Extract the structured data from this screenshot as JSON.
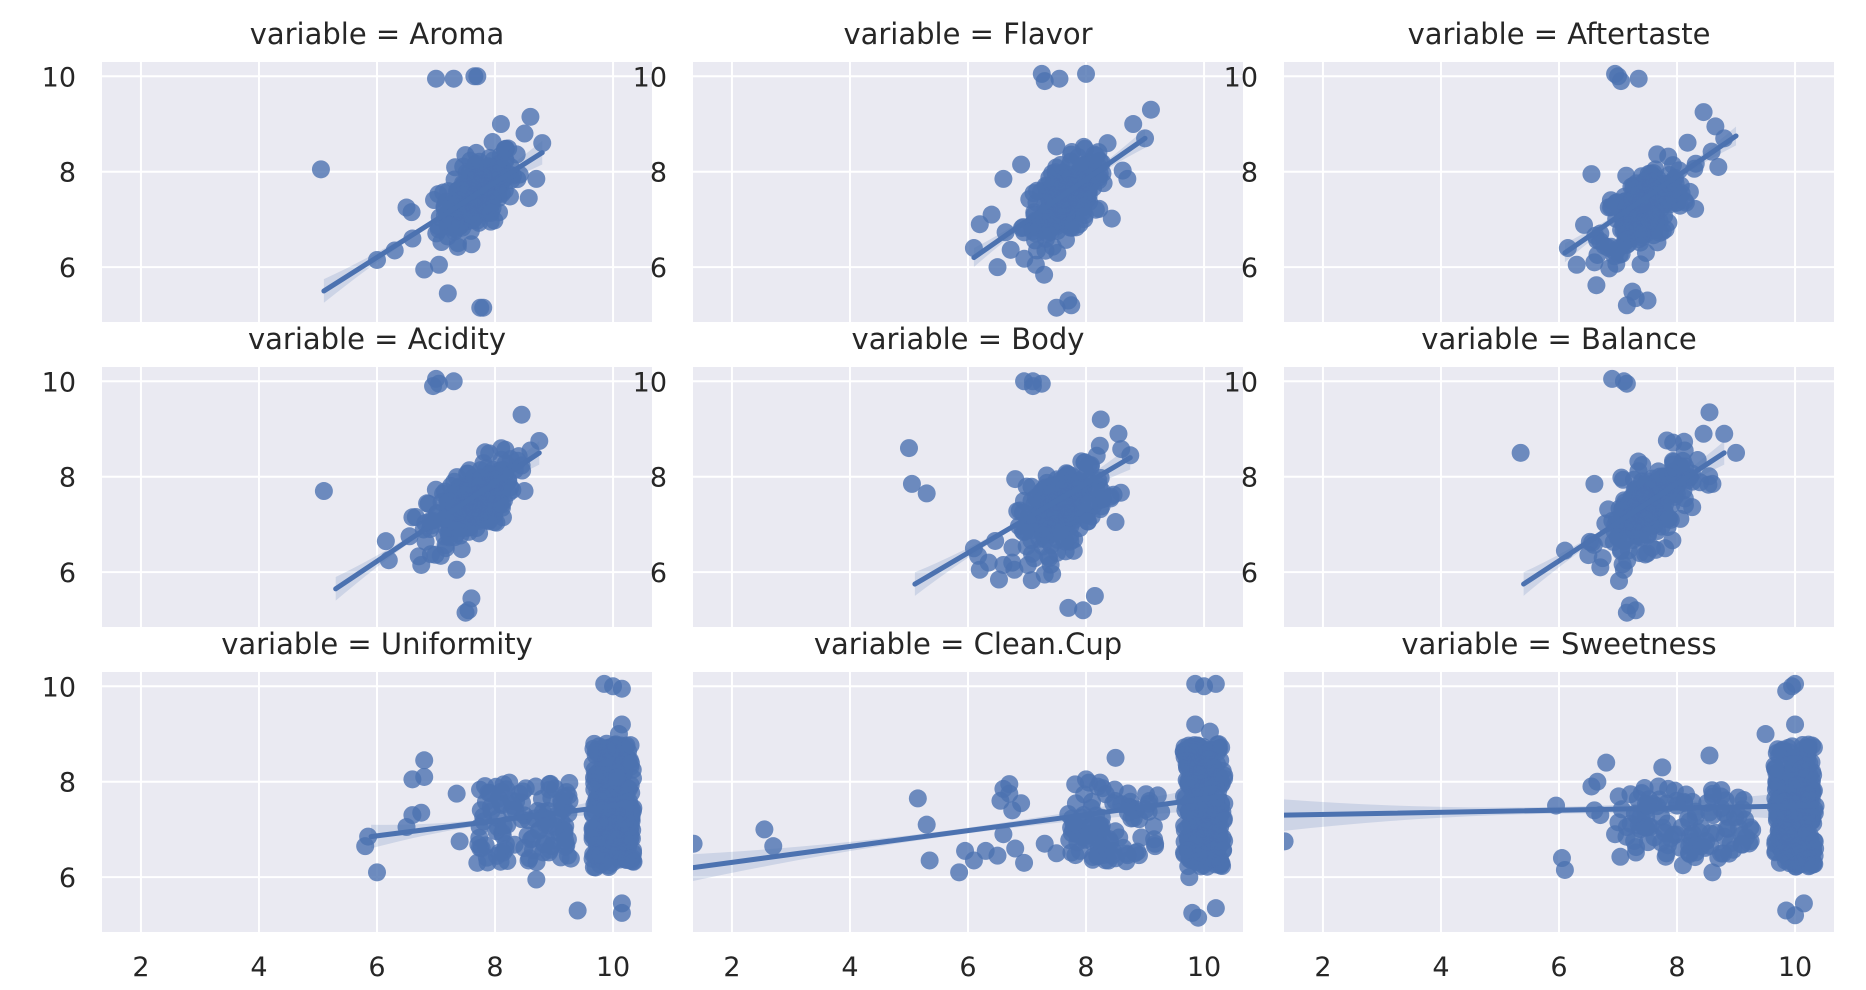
{
  "figure": {
    "style": {
      "panel_bg": "#eaeaf2",
      "grid_color": "#ffffff",
      "series_color": "#4c72b0",
      "ci_color": "#4c72b0"
    }
  },
  "chart_data": [
    {
      "type": "scatter",
      "title": "variable = Aroma",
      "xlim": [
        1.34,
        10.66
      ],
      "ylim": [
        4.85,
        10.3
      ],
      "xticks": [],
      "yticks": [
        6,
        8,
        10
      ],
      "grid": true,
      "center": [
        7.7,
        7.55
      ],
      "spread": [
        0.32,
        0.38
      ],
      "n_dense": 220,
      "line_x": [
        5.1,
        8.8
      ],
      "line_y": [
        5.5,
        8.4
      ],
      "ci": 0.15,
      "points": [
        [
          5.05,
          8.05
        ],
        [
          7.0,
          9.95
        ],
        [
          7.3,
          9.95
        ],
        [
          7.7,
          10.0
        ],
        [
          7.65,
          10.0
        ],
        [
          7.2,
          5.45
        ],
        [
          7.75,
          5.15
        ],
        [
          7.8,
          5.15
        ],
        [
          6.8,
          5.95
        ],
        [
          7.05,
          6.05
        ],
        [
          8.1,
          9.0
        ],
        [
          8.6,
          9.15
        ],
        [
          8.8,
          8.6
        ],
        [
          8.7,
          7.85
        ],
        [
          6.0,
          6.15
        ],
        [
          6.3,
          6.35
        ],
        [
          6.6,
          6.6
        ],
        [
          6.5,
          7.25
        ],
        [
          8.5,
          8.8
        ]
      ]
    },
    {
      "type": "scatter",
      "title": "variable = Flavor",
      "xlim": [
        1.34,
        10.66
      ],
      "ylim": [
        4.85,
        10.3
      ],
      "xticks": [],
      "yticks": [
        6,
        8,
        10
      ],
      "grid": true,
      "center": [
        7.65,
        7.4
      ],
      "spread": [
        0.35,
        0.38
      ],
      "n_dense": 220,
      "line_x": [
        6.1,
        9.0
      ],
      "line_y": [
        6.2,
        8.7
      ],
      "ci": 0.12,
      "points": [
        [
          7.25,
          10.05
        ],
        [
          7.55,
          9.95
        ],
        [
          8.0,
          10.05
        ],
        [
          7.3,
          9.9
        ],
        [
          7.7,
          5.3
        ],
        [
          7.75,
          5.2
        ],
        [
          7.5,
          5.15
        ],
        [
          7.15,
          6.05
        ],
        [
          6.5,
          6.0
        ],
        [
          6.1,
          6.4
        ],
        [
          6.2,
          6.9
        ],
        [
          6.4,
          7.1
        ],
        [
          9.1,
          9.3
        ],
        [
          8.8,
          9.0
        ],
        [
          9.0,
          8.7
        ],
        [
          8.7,
          7.85
        ],
        [
          6.9,
          8.15
        ],
        [
          6.6,
          7.85
        ]
      ]
    },
    {
      "type": "scatter",
      "title": "variable = Aftertaste",
      "xlim": [
        1.34,
        10.66
      ],
      "ylim": [
        4.85,
        10.3
      ],
      "xticks": [],
      "yticks": [
        6,
        8,
        10
      ],
      "grid": true,
      "center": [
        7.45,
        7.25
      ],
      "spread": [
        0.36,
        0.4
      ],
      "n_dense": 220,
      "line_x": [
        6.1,
        9.0
      ],
      "line_y": [
        6.3,
        8.75
      ],
      "ci": 0.12,
      "points": [
        [
          6.95,
          10.05
        ],
        [
          7.0,
          10.0
        ],
        [
          7.35,
          9.95
        ],
        [
          7.05,
          9.9
        ],
        [
          7.3,
          5.35
        ],
        [
          7.5,
          5.3
        ],
        [
          7.15,
          5.2
        ],
        [
          6.3,
          6.05
        ],
        [
          6.6,
          6.1
        ],
        [
          6.15,
          6.4
        ],
        [
          8.45,
          9.25
        ],
        [
          8.65,
          8.95
        ],
        [
          8.8,
          8.7
        ],
        [
          8.7,
          8.1
        ],
        [
          8.15,
          7.35
        ],
        [
          6.55,
          7.95
        ]
      ]
    },
    {
      "type": "scatter",
      "title": "variable = Acidity",
      "xlim": [
        1.34,
        10.66
      ],
      "ylim": [
        4.85,
        10.3
      ],
      "xticks": [],
      "yticks": [
        6,
        8,
        10
      ],
      "grid": true,
      "center": [
        7.6,
        7.45
      ],
      "spread": [
        0.36,
        0.38
      ],
      "n_dense": 220,
      "line_x": [
        5.3,
        8.75
      ],
      "line_y": [
        5.65,
        8.5
      ],
      "ci": 0.15,
      "points": [
        [
          5.1,
          7.7
        ],
        [
          7.0,
          10.05
        ],
        [
          7.05,
          9.95
        ],
        [
          7.3,
          10.0
        ],
        [
          6.95,
          9.9
        ],
        [
          7.6,
          5.45
        ],
        [
          7.55,
          5.2
        ],
        [
          7.5,
          5.15
        ],
        [
          6.75,
          6.15
        ],
        [
          7.35,
          6.05
        ],
        [
          6.2,
          6.25
        ],
        [
          6.15,
          6.65
        ],
        [
          8.45,
          9.3
        ],
        [
          8.75,
          8.75
        ],
        [
          8.6,
          8.55
        ],
        [
          8.5,
          7.7
        ],
        [
          6.6,
          7.15
        ]
      ]
    },
    {
      "type": "scatter",
      "title": "variable = Body",
      "xlim": [
        1.34,
        10.66
      ],
      "ylim": [
        4.85,
        10.3
      ],
      "xticks": [],
      "yticks": [
        6,
        8,
        10
      ],
      "grid": true,
      "center": [
        7.6,
        7.35
      ],
      "spread": [
        0.38,
        0.4
      ],
      "n_dense": 220,
      "line_x": [
        5.1,
        8.75
      ],
      "line_y": [
        5.75,
        8.4
      ],
      "ci": 0.15,
      "points": [
        [
          5.0,
          8.6
        ],
        [
          5.05,
          7.85
        ],
        [
          5.3,
          7.65
        ],
        [
          6.95,
          10.0
        ],
        [
          7.1,
          10.0
        ],
        [
          7.25,
          9.95
        ],
        [
          7.1,
          9.9
        ],
        [
          8.15,
          5.5
        ],
        [
          7.7,
          5.25
        ],
        [
          7.95,
          5.2
        ],
        [
          7.3,
          5.95
        ],
        [
          6.6,
          6.15
        ],
        [
          6.2,
          6.05
        ],
        [
          6.1,
          6.5
        ],
        [
          6.35,
          6.2
        ],
        [
          8.25,
          9.2
        ],
        [
          8.55,
          8.9
        ],
        [
          8.75,
          8.45
        ],
        [
          8.5,
          7.05
        ],
        [
          6.8,
          7.95
        ]
      ]
    },
    {
      "type": "scatter",
      "title": "variable = Balance",
      "xlim": [
        1.34,
        10.66
      ],
      "ylim": [
        4.85,
        10.3
      ],
      "xticks": [],
      "yticks": [
        6,
        8,
        10
      ],
      "grid": true,
      "center": [
        7.5,
        7.35
      ],
      "spread": [
        0.38,
        0.4
      ],
      "n_dense": 220,
      "line_x": [
        5.4,
        8.8
      ],
      "line_y": [
        5.75,
        8.5
      ],
      "ci": 0.15,
      "points": [
        [
          5.35,
          8.5
        ],
        [
          6.9,
          10.05
        ],
        [
          7.1,
          10.0
        ],
        [
          7.15,
          9.95
        ],
        [
          7.2,
          5.3
        ],
        [
          7.3,
          5.2
        ],
        [
          7.15,
          5.15
        ],
        [
          6.7,
          6.1
        ],
        [
          7.1,
          6.05
        ],
        [
          7.8,
          6.5
        ],
        [
          6.1,
          6.45
        ],
        [
          8.55,
          9.35
        ],
        [
          8.45,
          8.9
        ],
        [
          8.8,
          8.9
        ],
        [
          9.0,
          8.5
        ],
        [
          8.6,
          7.85
        ],
        [
          8.35,
          8.35
        ],
        [
          6.6,
          7.85
        ],
        [
          7.5,
          6.8
        ]
      ]
    },
    {
      "type": "scatter",
      "title": "variable = Uniformity",
      "xlim": [
        1.34,
        10.66
      ],
      "ylim": [
        4.85,
        10.3
      ],
      "xticks": [
        2,
        4,
        6,
        8,
        10
      ],
      "yticks": [
        6,
        8,
        10
      ],
      "grid": true,
      "band": [
        9.65,
        10.35
      ],
      "band_y": [
        6.2,
        8.8
      ],
      "n_band": 240,
      "mid_band": [
        7.7,
        9.3
      ],
      "n_mid": 110,
      "mid_y": [
        6.3,
        8.0
      ],
      "line_x": [
        5.9,
        10.35
      ],
      "line_y": [
        6.85,
        7.55
      ],
      "ci": 0.15,
      "points": [
        [
          5.8,
          6.65
        ],
        [
          5.85,
          6.85
        ],
        [
          6.0,
          6.1
        ],
        [
          6.5,
          7.05
        ],
        [
          6.6,
          7.3
        ],
        [
          6.6,
          8.05
        ],
        [
          6.8,
          8.1
        ],
        [
          6.8,
          8.45
        ],
        [
          6.75,
          7.35
        ],
        [
          7.4,
          6.75
        ],
        [
          7.35,
          7.75
        ],
        [
          7.7,
          6.3
        ],
        [
          8.7,
          5.95
        ],
        [
          9.4,
          5.3
        ],
        [
          10.15,
          5.45
        ],
        [
          10.15,
          5.25
        ],
        [
          9.85,
          10.05
        ],
        [
          10.0,
          10.0
        ],
        [
          10.15,
          9.95
        ],
        [
          10.15,
          9.2
        ],
        [
          10.1,
          9.0
        ]
      ]
    },
    {
      "type": "scatter",
      "title": "variable = Clean.Cup",
      "xlim": [
        1.34,
        10.66
      ],
      "ylim": [
        4.85,
        10.3
      ],
      "xticks": [
        2,
        4,
        6,
        8,
        10
      ],
      "yticks": [],
      "grid": true,
      "band": [
        9.65,
        10.35
      ],
      "band_y": [
        6.2,
        8.8
      ],
      "n_band": 240,
      "mid_band": [
        7.7,
        9.3
      ],
      "n_mid": 90,
      "mid_y": [
        6.3,
        8.0
      ],
      "line_x": [
        1.34,
        10.35
      ],
      "line_y": [
        6.2,
        7.7
      ],
      "ci": 0.17,
      "points": [
        [
          1.35,
          6.7
        ],
        [
          2.55,
          7.0
        ],
        [
          2.7,
          6.65
        ],
        [
          5.15,
          7.65
        ],
        [
          5.35,
          6.35
        ],
        [
          5.3,
          7.1
        ],
        [
          5.85,
          6.1
        ],
        [
          5.95,
          6.55
        ],
        [
          6.1,
          6.35
        ],
        [
          6.3,
          6.55
        ],
        [
          6.55,
          7.6
        ],
        [
          6.6,
          7.85
        ],
        [
          6.7,
          7.75
        ],
        [
          6.7,
          7.95
        ],
        [
          6.75,
          7.4
        ],
        [
          6.9,
          7.55
        ],
        [
          6.95,
          6.3
        ],
        [
          6.6,
          6.9
        ],
        [
          7.3,
          6.7
        ],
        [
          7.5,
          6.5
        ],
        [
          6.5,
          6.45
        ],
        [
          6.8,
          6.6
        ],
        [
          8.0,
          8.05
        ],
        [
          8.5,
          8.5
        ],
        [
          9.8,
          5.25
        ],
        [
          9.9,
          5.15
        ],
        [
          10.2,
          5.35
        ],
        [
          9.75,
          6.0
        ],
        [
          9.85,
          10.05
        ],
        [
          10.0,
          10.0
        ],
        [
          10.2,
          10.05
        ],
        [
          9.85,
          9.2
        ],
        [
          10.1,
          9.05
        ]
      ]
    },
    {
      "type": "scatter",
      "title": "variable = Sweetness",
      "xlim": [
        1.34,
        10.66
      ],
      "ylim": [
        4.85,
        10.3
      ],
      "xticks": [
        2,
        4,
        6,
        8,
        10
      ],
      "yticks": [],
      "grid": true,
      "band": [
        9.65,
        10.35
      ],
      "band_y": [
        6.2,
        8.8
      ],
      "n_band": 240,
      "mid_band": [
        7.0,
        9.3
      ],
      "n_mid": 110,
      "mid_y": [
        6.4,
        7.9
      ],
      "line_x": [
        1.34,
        10.35
      ],
      "line_y": [
        7.3,
        7.5
      ],
      "ci": 0.2,
      "points": [
        [
          1.35,
          6.75
        ],
        [
          5.95,
          7.5
        ],
        [
          6.05,
          6.4
        ],
        [
          6.1,
          6.15
        ],
        [
          6.55,
          7.9
        ],
        [
          6.65,
          8.0
        ],
        [
          6.8,
          8.4
        ],
        [
          6.6,
          7.4
        ],
        [
          6.7,
          7.3
        ],
        [
          6.95,
          6.9
        ],
        [
          7.15,
          7.05
        ],
        [
          7.5,
          7.5
        ],
        [
          7.75,
          8.3
        ],
        [
          7.85,
          7.85
        ],
        [
          8.1,
          6.25
        ],
        [
          8.55,
          8.55
        ],
        [
          8.6,
          6.1
        ],
        [
          8.7,
          6.4
        ],
        [
          9.5,
          9.0
        ],
        [
          9.85,
          5.3
        ],
        [
          10.0,
          5.2
        ],
        [
          10.15,
          5.45
        ],
        [
          9.85,
          9.9
        ],
        [
          9.95,
          10.0
        ],
        [
          10.0,
          10.05
        ],
        [
          10.0,
          9.2
        ]
      ]
    }
  ]
}
